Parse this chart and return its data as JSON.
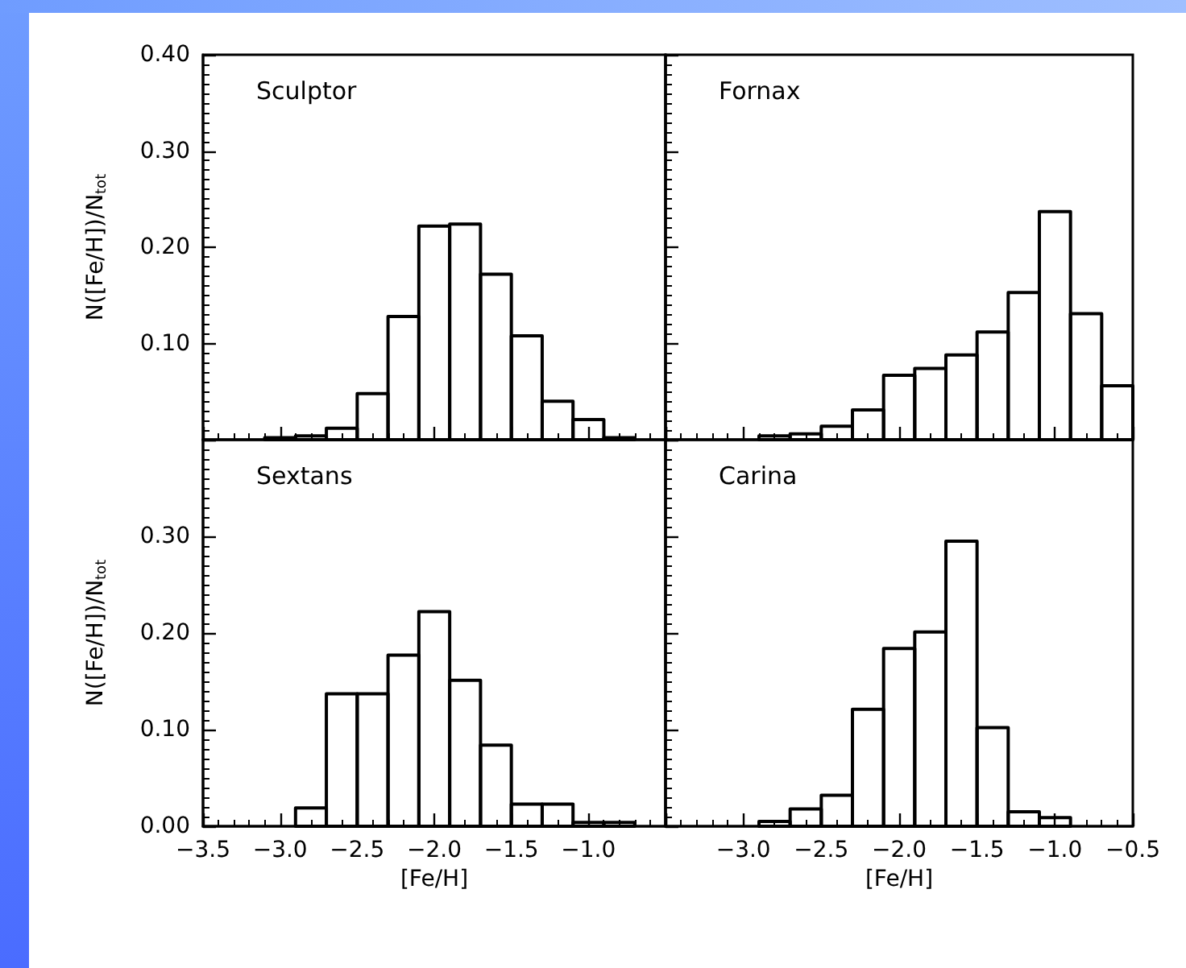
{
  "chart_data": [
    {
      "type": "histogram",
      "title": "Sculptor",
      "ylabel": "N([Fe/H])/N$_{tot}$",
      "color": "#000000",
      "bins": [
        -3.1,
        -2.9,
        -2.7,
        -2.5,
        -2.3,
        -2.1,
        -1.9,
        -1.7,
        -1.5,
        -1.3,
        -1.1,
        -0.9,
        -0.7
      ],
      "values": [
        0.002,
        0.004,
        0.012,
        0.048,
        0.128,
        0.222,
        0.224,
        0.172,
        0.108,
        0.04,
        0.021,
        0.002
      ],
      "xlim": [
        -3.5,
        -0.5
      ],
      "xticks": [
        {
          "value": -3.5,
          "label": null
        },
        {
          "value": -3.0,
          "label": null
        },
        {
          "value": -2.5,
          "label": null
        },
        {
          "value": -2.0,
          "label": null
        },
        {
          "value": -1.5,
          "label": null
        },
        {
          "value": -1.0,
          "label": null
        },
        {
          "value": -0.5,
          "label": null
        }
      ],
      "ylim": [
        0,
        0.4
      ],
      "yticks": [
        {
          "value": 0,
          "label": null
        },
        {
          "value": 0.1,
          "label": "0.10"
        },
        {
          "value": 0.2,
          "label": "0.20"
        },
        {
          "value": 0.3,
          "label": "0.30"
        },
        {
          "value": 0.4,
          "label": "0.40"
        }
      ],
      "tick_labels": "y"
    },
    {
      "type": "histogram",
      "title": "Fornax",
      "color": "#000000",
      "bins": [
        -2.9,
        -2.7,
        -2.5,
        -2.3,
        -2.1,
        -1.9,
        -1.7,
        -1.5,
        -1.3,
        -1.1,
        -0.9,
        -0.7,
        -0.5
      ],
      "values": [
        0.004,
        0.006,
        0.014,
        0.031,
        0.067,
        0.074,
        0.088,
        0.112,
        0.153,
        0.237,
        0.131,
        0.056
      ],
      "xlim": [
        -3.5,
        -0.5
      ],
      "xticks": [
        {
          "value": -3.5,
          "label": null
        },
        {
          "value": -3.0,
          "label": null
        },
        {
          "value": -2.5,
          "label": null
        },
        {
          "value": -2.0,
          "label": null
        },
        {
          "value": -1.5,
          "label": null
        },
        {
          "value": -1.0,
          "label": null
        },
        {
          "value": -0.5,
          "label": null
        }
      ],
      "ylim": [
        0,
        0.4
      ],
      "yticks": [
        {
          "value": 0,
          "label": null
        },
        {
          "value": 0.1,
          "label": null
        },
        {
          "value": 0.2,
          "label": null
        },
        {
          "value": 0.3,
          "label": null
        },
        {
          "value": 0.4,
          "label": null
        }
      ],
      "tick_labels": false
    },
    {
      "type": "histogram",
      "title": "Sextans",
      "xlabel": "[Fe/H]",
      "ylabel": "N([Fe/H])/N$_{tot}$",
      "color": "#000000",
      "bins": [
        -2.9,
        -2.7,
        -2.5,
        -2.3,
        -2.1,
        -1.9,
        -1.7,
        -1.5,
        -1.3,
        -1.1,
        -0.9,
        -0.7
      ],
      "values": [
        0.019,
        0.137,
        0.137,
        0.177,
        0.222,
        0.151,
        0.084,
        0.023,
        0.023,
        0.004,
        0.004
      ],
      "xlim": [
        -3.5,
        -0.5
      ],
      "xticks": [
        {
          "value": -3.5,
          "label": "−3.5"
        },
        {
          "value": -3.0,
          "label": "−3.0"
        },
        {
          "value": -2.5,
          "label": "−2.5"
        },
        {
          "value": -2.0,
          "label": "−2.0"
        },
        {
          "value": -1.5,
          "label": "−1.5"
        },
        {
          "value": -1.0,
          "label": "−1.0"
        },
        {
          "value": -0.5,
          "label": null
        }
      ],
      "ylim": [
        0,
        0.4
      ],
      "yticks": [
        {
          "value": 0,
          "label": "0.00"
        },
        {
          "value": 0.1,
          "label": "0.10"
        },
        {
          "value": 0.2,
          "label": "0.20"
        },
        {
          "value": 0.3,
          "label": "0.30"
        },
        {
          "value": 0.4,
          "label": null
        }
      ]
    },
    {
      "type": "histogram",
      "title": "Carina",
      "xlabel": "[Fe/H]",
      "color": "#000000",
      "bins": [
        -2.9,
        -2.7,
        -2.5,
        -2.3,
        -2.1,
        -1.9,
        -1.7,
        -1.5,
        -1.3,
        -1.1,
        -0.9
      ],
      "values": [
        0.005,
        0.018,
        0.032,
        0.121,
        0.184,
        0.201,
        0.295,
        0.102,
        0.015,
        0.009
      ],
      "xlim": [
        -3.5,
        -0.5
      ],
      "xticks": [
        {
          "value": -3.5,
          "label": null
        },
        {
          "value": -3.0,
          "label": "−3.0"
        },
        {
          "value": -2.5,
          "label": "−2.5"
        },
        {
          "value": -2.0,
          "label": "−2.0"
        },
        {
          "value": -1.5,
          "label": "−1.5"
        },
        {
          "value": -1.0,
          "label": "−1.0"
        },
        {
          "value": -0.5,
          "label": "−0.5"
        }
      ],
      "ylim": [
        0,
        0.4
      ],
      "yticks": [
        {
          "value": 0,
          "label": null
        },
        {
          "value": 0.1,
          "label": null
        },
        {
          "value": 0.2,
          "label": null
        },
        {
          "value": 0.3,
          "label": null
        },
        {
          "value": 0.4,
          "label": null
        }
      ],
      "tick_labels": "x"
    }
  ]
}
